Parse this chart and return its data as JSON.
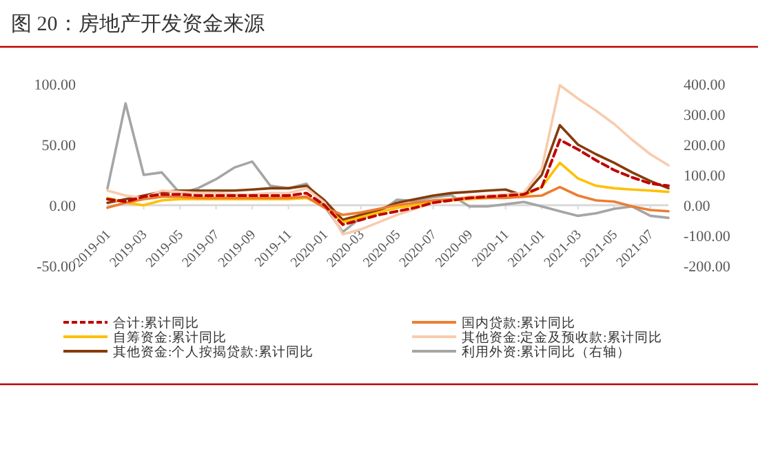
{
  "chart_data": {
    "type": "line",
    "title": "图 20：房地产开发资金来源",
    "x": [
      "2019-01",
      "2019-02",
      "2019-03",
      "2019-04",
      "2019-05",
      "2019-06",
      "2019-07",
      "2019-08",
      "2019-09",
      "2019-10",
      "2019-11",
      "2019-12",
      "2020-01",
      "2020-02",
      "2020-03",
      "2020-04",
      "2020-05",
      "2020-06",
      "2020-07",
      "2020-08",
      "2020-09",
      "2020-10",
      "2020-11",
      "2020-12",
      "2021-01",
      "2021-02",
      "2021-03",
      "2021-04",
      "2021-05",
      "2021-06",
      "2021-07",
      "2021-08"
    ],
    "xlim": [
      "2019-01",
      "2021-08"
    ],
    "xticks": [
      "2019-01",
      "2019-03",
      "2019-05",
      "2019-07",
      "2019-09",
      "2019-11",
      "2020-01",
      "2020-03",
      "2020-05",
      "2020-07",
      "2020-09",
      "2020-11",
      "2021-01",
      "2021-03",
      "2021-05",
      "2021-07"
    ],
    "ylim": [
      -50,
      100
    ],
    "yticks": [
      {
        "value": -50,
        "label": "-50.00"
      },
      {
        "value": 0,
        "label": "0.00"
      },
      {
        "value": 50,
        "label": "50.00"
      },
      {
        "value": 100,
        "label": "100.00"
      }
    ],
    "y2lim": [
      -200,
      400
    ],
    "y2ticks": [
      {
        "value": -200,
        "label": "-200.00"
      },
      {
        "value": -100,
        "label": "-100.00"
      },
      {
        "value": 0,
        "label": "0.00"
      },
      {
        "value": 100,
        "label": "100.00"
      },
      {
        "value": 200,
        "label": "200.00"
      },
      {
        "value": 300,
        "label": "300.00"
      },
      {
        "value": 400,
        "label": "400.00"
      }
    ],
    "grid": false,
    "legend": "bottom",
    "series": [
      {
        "name": "合计:累计同比",
        "color": "#c00000",
        "line_style": "dashed",
        "values": [
          5,
          3,
          7,
          9,
          9,
          8,
          8,
          8,
          8,
          8,
          8,
          10,
          0,
          -16,
          -12,
          -8,
          -5,
          -2,
          2,
          4,
          6,
          7,
          8,
          9,
          15,
          54,
          46,
          37,
          29,
          23,
          18,
          16
        ]
      },
      {
        "name": "国内贷款:累计同比",
        "color": "#ed7d31",
        "line_style": "solid",
        "values": [
          -2,
          2,
          5,
          7,
          7,
          6,
          6,
          6,
          6,
          6,
          6,
          7,
          -2,
          -8,
          -6,
          -3,
          0,
          2,
          4,
          5,
          6,
          6,
          6,
          7,
          8,
          15,
          8,
          4,
          3,
          -1,
          -4,
          -5
        ]
      },
      {
        "name": "自筹资金:累计同比",
        "color": "#ffc000",
        "line_style": "solid",
        "values": [
          6,
          2,
          0,
          4,
          5,
          5,
          5,
          5,
          5,
          5,
          5,
          6,
          -1,
          -14,
          -10,
          -6,
          -2,
          0,
          3,
          4,
          5,
          6,
          7,
          8,
          15,
          35,
          22,
          16,
          14,
          13,
          12,
          11
        ]
      },
      {
        "name": "其他资金:定金及预收款:累计同比",
        "color": "#f8cbad",
        "line_style": "solid",
        "values": [
          12,
          8,
          6,
          12,
          11,
          10,
          10,
          9,
          9,
          10,
          10,
          14,
          2,
          -24,
          -20,
          -14,
          -8,
          -3,
          2,
          5,
          7,
          8,
          9,
          10,
          30,
          99,
          88,
          78,
          67,
          54,
          42,
          33
        ]
      },
      {
        "name": "其他资金:个人按揭贷款:累计同比",
        "color": "#843c0c",
        "line_style": "solid",
        "values": [
          2,
          5,
          8,
          11,
          12,
          12,
          12,
          12,
          13,
          14,
          14,
          16,
          4,
          -12,
          -8,
          -4,
          2,
          5,
          8,
          10,
          11,
          12,
          13,
          8,
          25,
          66,
          50,
          42,
          35,
          27,
          20,
          14
        ]
      },
      {
        "name": "利用外资:累计同比（右轴）",
        "color": "#a5a5a5",
        "line_style": "solid",
        "axis": "y2",
        "values": [
          56,
          336,
          100,
          108,
          40,
          56,
          86,
          124,
          144,
          64,
          56,
          71,
          -4,
          -88,
          -42,
          -24,
          18,
          14,
          26,
          33,
          -4,
          -4,
          3,
          11,
          -4,
          -20,
          -35,
          -27,
          -12,
          -4,
          -35,
          -42
        ]
      }
    ]
  }
}
